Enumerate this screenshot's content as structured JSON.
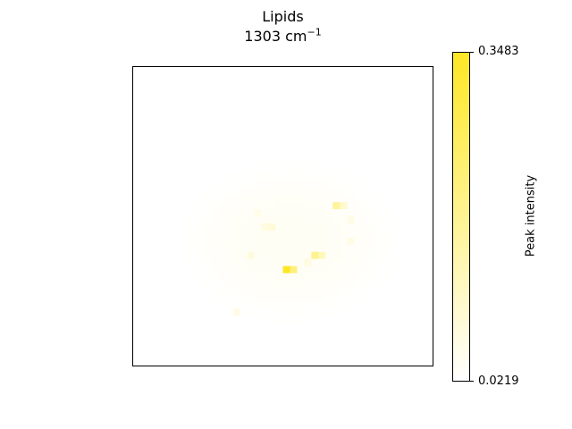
{
  "chart_data": {
    "type": "heatmap",
    "title_line1": "Lipids",
    "title_line2_value": "1303 cm",
    "title_line2_exponent": "−1",
    "colorbar": {
      "label": "Peak intensity",
      "min": 0.0219,
      "max": 0.3483,
      "tick_labels": [
        "0.3483",
        "0.0219"
      ],
      "color_low": "#ffffff",
      "color_high": "#fde725"
    },
    "grid": {
      "rows": 42,
      "cols": 42,
      "background_value": 0.0219,
      "diffuse_blob_value": 0.038
    },
    "hotspots": [
      {
        "row": 28,
        "col": 21,
        "value": 0.3483
      },
      {
        "row": 28,
        "col": 22,
        "value": 0.22
      },
      {
        "row": 26,
        "col": 25,
        "value": 0.19
      },
      {
        "row": 26,
        "col": 26,
        "value": 0.12
      },
      {
        "row": 19,
        "col": 28,
        "value": 0.17
      },
      {
        "row": 19,
        "col": 29,
        "value": 0.1
      },
      {
        "row": 22,
        "col": 19,
        "value": 0.08
      },
      {
        "row": 22,
        "col": 18,
        "value": 0.07
      },
      {
        "row": 26,
        "col": 16,
        "value": 0.07
      },
      {
        "row": 34,
        "col": 14,
        "value": 0.06
      },
      {
        "row": 21,
        "col": 30,
        "value": 0.06
      },
      {
        "row": 24,
        "col": 30,
        "value": 0.06
      },
      {
        "row": 27,
        "col": 24,
        "value": 0.07
      },
      {
        "row": 20,
        "col": 17,
        "value": 0.055
      }
    ]
  }
}
